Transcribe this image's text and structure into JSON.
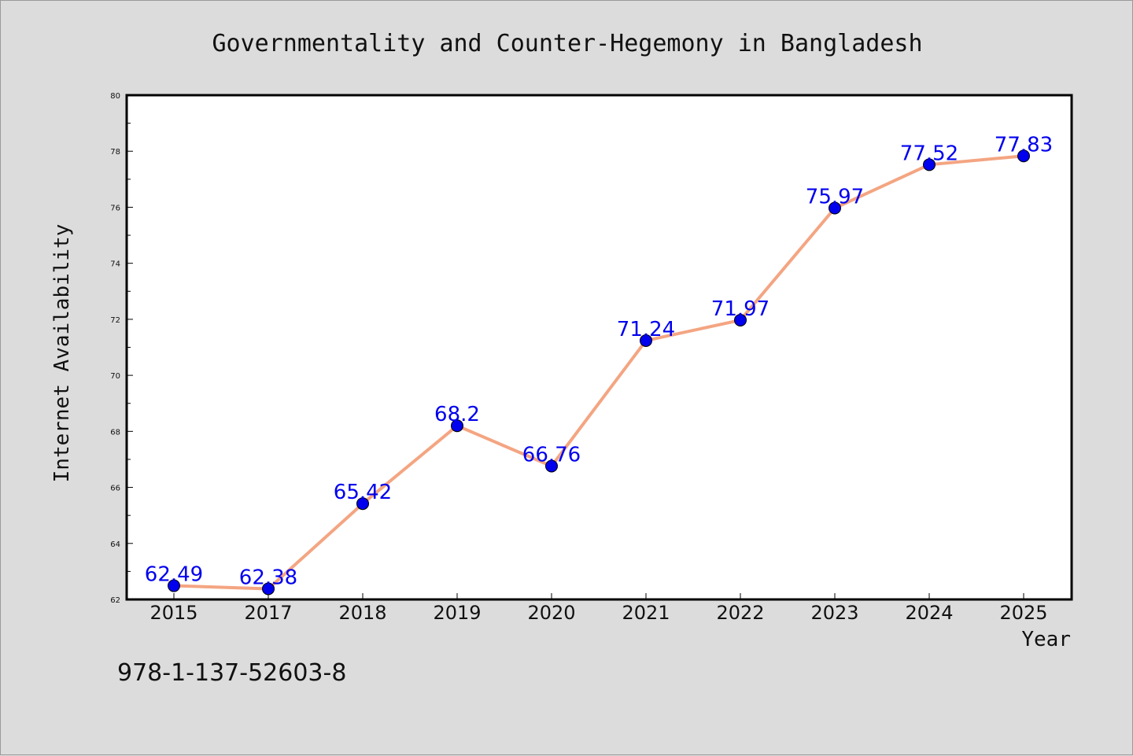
{
  "chart_data": {
    "type": "line",
    "title": "Governmentality and Counter-Hegemony in Bangladesh",
    "xlabel": "Year",
    "ylabel": "Internet Availability",
    "categories": [
      "2015",
      "2017",
      "2018",
      "2019",
      "2020",
      "2021",
      "2022",
      "2023",
      "2024",
      "2025"
    ],
    "series": [
      {
        "values": [
          62.49,
          62.38,
          65.42,
          68.2,
          66.76,
          71.24,
          71.97,
          75.97,
          77.52,
          77.83
        ],
        "labels": [
          "62.49",
          "62.38",
          "65.42",
          "68.2",
          "66.76",
          "71.24",
          "71.97",
          "75.97",
          "77.52",
          "77.83"
        ],
        "line_color": "#f4a582",
        "marker_color": "#0000ee",
        "label_color": "#0000ee"
      }
    ],
    "ylim": [
      62,
      80
    ],
    "yticks": [
      62,
      64,
      66,
      68,
      70,
      72,
      74,
      76,
      78,
      80
    ],
    "grid": false,
    "legend": "none"
  },
  "footer": {
    "isbn": "978-1-137-52603-8"
  },
  "colors": {
    "background": "#dcdcdc",
    "plot_background": "#ffffff",
    "axis": "#000000"
  }
}
